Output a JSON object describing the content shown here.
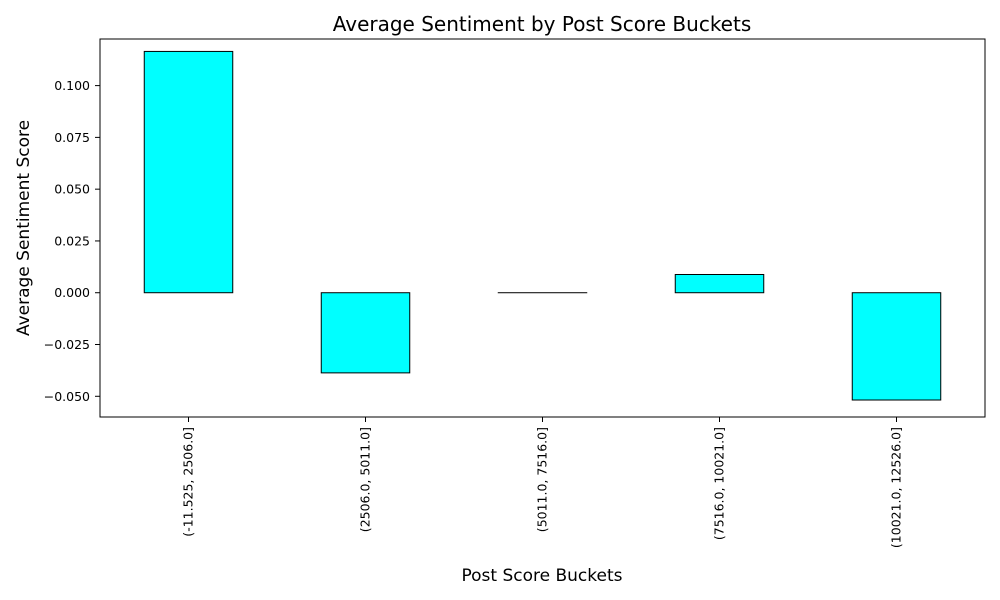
{
  "chart_data": {
    "type": "bar",
    "title": "Average Sentiment by Post Score Buckets",
    "xlabel": "Post Score Buckets",
    "ylabel": "Average Sentiment Score",
    "categories": [
      "(-11.525, 2506.0]",
      "(2506.0, 5011.0]",
      "(5011.0, 7516.0]",
      "(7516.0, 10021.0]",
      "(10021.0, 12526.0]"
    ],
    "values": [
      0.1165,
      -0.0387,
      0.0,
      0.0088,
      -0.0518
    ],
    "ylim": [
      -0.06,
      0.1225
    ],
    "yticks": [
      -0.05,
      -0.025,
      0.0,
      0.025,
      0.05,
      0.075,
      0.1
    ],
    "ytick_labels": [
      "−0.050",
      "−0.025",
      "0.000",
      "0.025",
      "0.050",
      "0.075",
      "0.100"
    ],
    "bar_color": "#00ffff",
    "edge_color": "#000000",
    "grid": false,
    "legend": false
  }
}
